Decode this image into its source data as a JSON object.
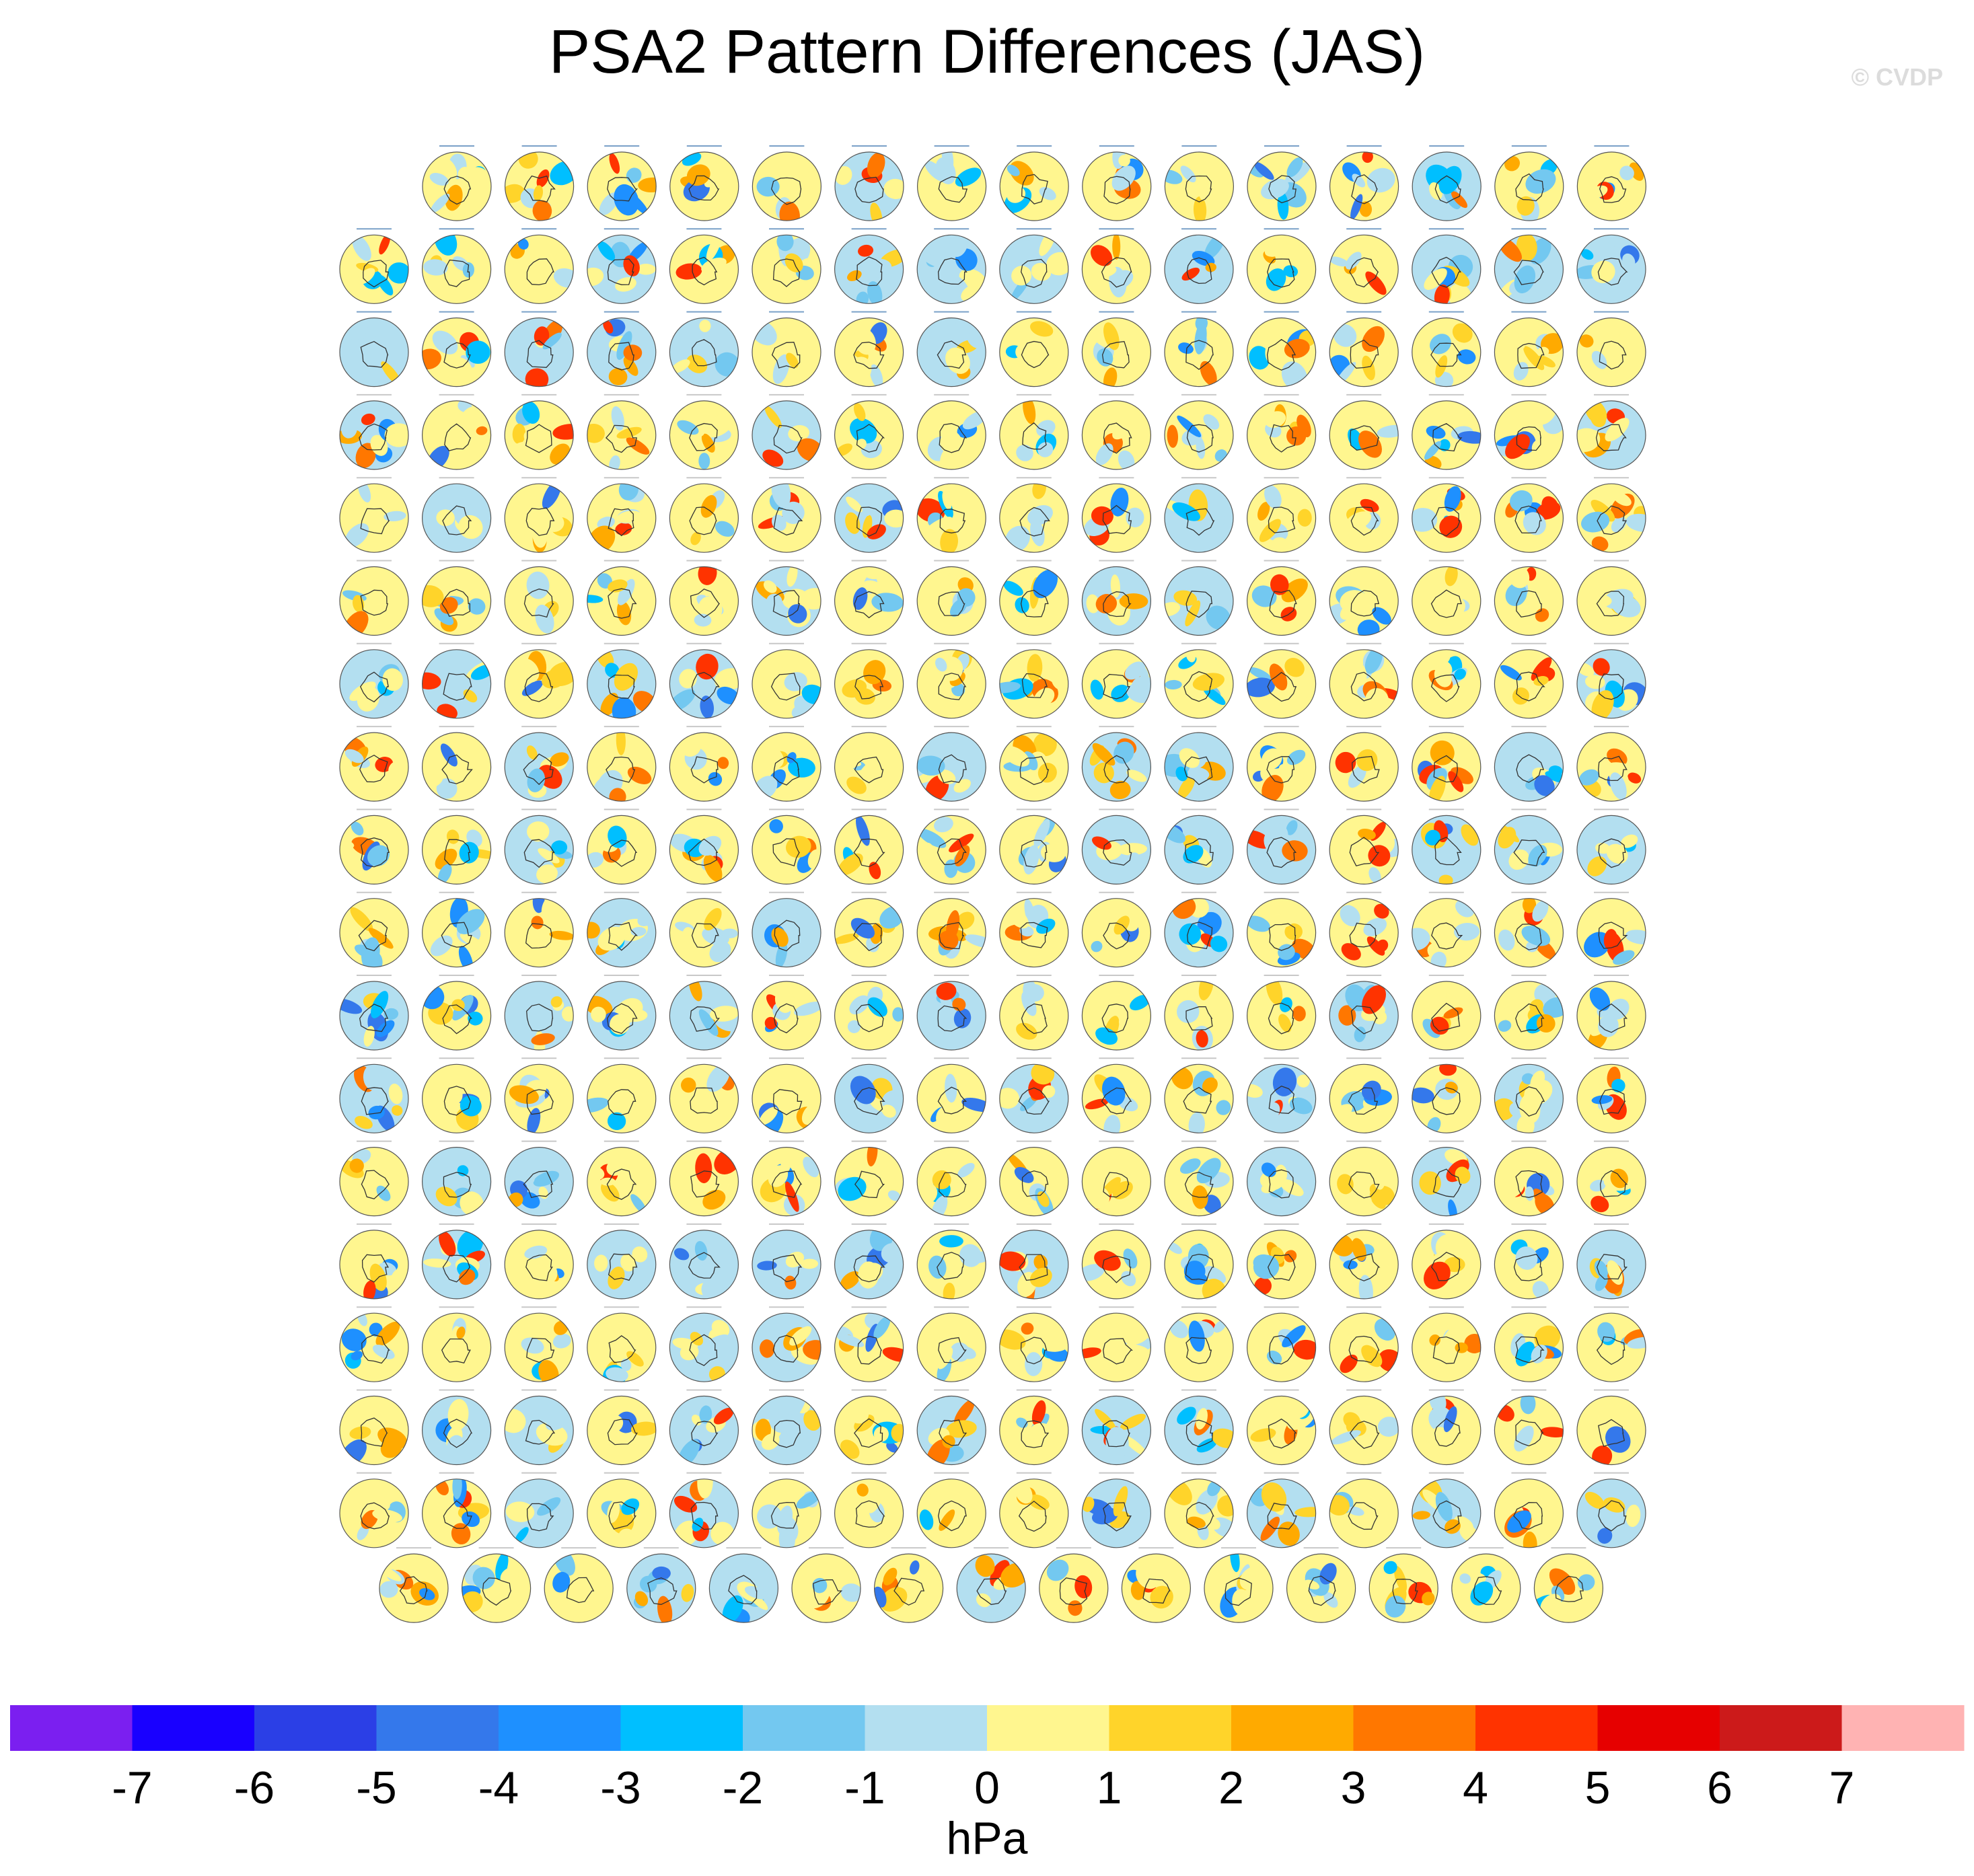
{
  "title": "PSA2 Pattern Differences (JAS)",
  "watermark": "© CVDP",
  "chart_data": {
    "type": "heatmap",
    "title": "PSA2 Pattern Differences (JAS)",
    "description_panels": "Grid of polar-stereographic Southern Hemisphere maps, one per model/ensemble member, each showing the difference of the PSA2 sea level pressure pattern from observations",
    "panel_rows": [
      15,
      16,
      16,
      16,
      16,
      16,
      16,
      16,
      16,
      16,
      16,
      16,
      16,
      16,
      16,
      16,
      16,
      15
    ],
    "units": "hPa",
    "colorbar": {
      "label": "hPa",
      "levels": [
        -7,
        -6,
        -5,
        -4,
        -3,
        -2,
        -1,
        0,
        1,
        2,
        3,
        4,
        5,
        6,
        7
      ],
      "colors": [
        "#7b1ff0",
        "#1900ff",
        "#2b3fe6",
        "#3478eb",
        "#1e90ff",
        "#00bfff",
        "#73c8f0",
        "#b3dff0",
        "#fff68f",
        "#ffd42a",
        "#ffaa00",
        "#ff7700",
        "#ff3300",
        "#e60000",
        "#cc1a1a",
        "#ffb3b3"
      ]
    }
  }
}
